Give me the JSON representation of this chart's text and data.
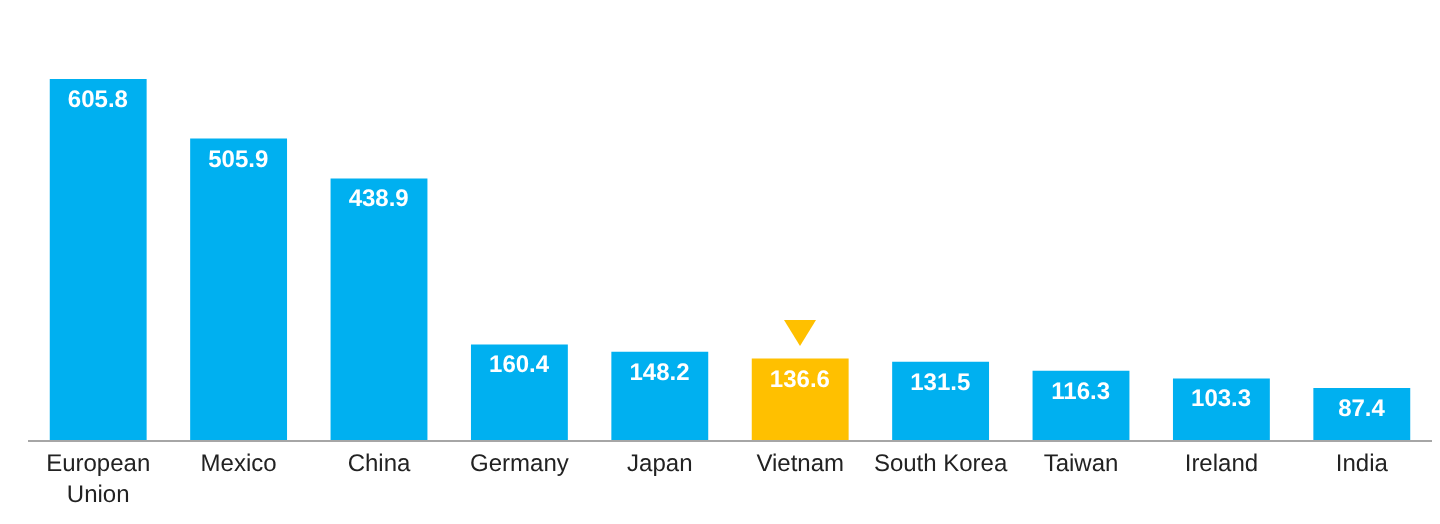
{
  "chart_data": {
    "type": "bar",
    "categories": [
      "European Union",
      "Mexico",
      "China",
      "Germany",
      "Japan",
      "Vietnam",
      "South Korea",
      "Taiwan",
      "Ireland",
      "India"
    ],
    "values": [
      605.8,
      505.9,
      438.9,
      160.4,
      148.2,
      136.6,
      131.5,
      116.3,
      103.3,
      87.4
    ],
    "colors": [
      "#00b0f0",
      "#00b0f0",
      "#00b0f0",
      "#00b0f0",
      "#00b0f0",
      "#ffc000",
      "#00b0f0",
      "#00b0f0",
      "#00b0f0",
      "#00b0f0"
    ],
    "data_labels": true
  }
}
